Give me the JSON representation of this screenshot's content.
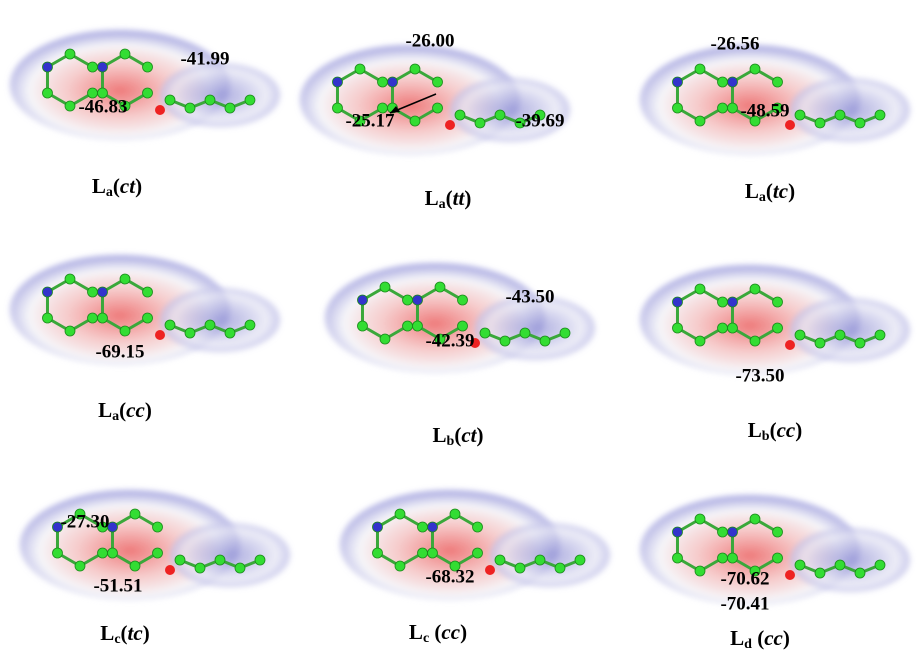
{
  "panels": [
    {
      "label": [
        "L",
        "a",
        "(",
        "ct",
        ")"
      ],
      "annotations": [
        "-41.99",
        "-46.83"
      ]
    },
    {
      "label": [
        "L",
        "a",
        "(",
        "tt",
        ")"
      ],
      "annotations": [
        "-26.00",
        "-25.17",
        "-39.69"
      ]
    },
    {
      "label": [
        "L",
        "a",
        "(",
        "tc",
        ")"
      ],
      "annotations": [
        "-26.56",
        "-48.59"
      ]
    },
    {
      "label": [
        "L",
        "a",
        "(",
        "cc",
        ")"
      ],
      "annotations": [
        "-69.15"
      ]
    },
    {
      "label": [
        "L",
        "b",
        "(",
        "ct",
        ")"
      ],
      "annotations": [
        "-43.50",
        "-42.39"
      ]
    },
    {
      "label": [
        "L",
        "b",
        "(",
        "cc",
        ")"
      ],
      "annotations": [
        "-73.50"
      ]
    },
    {
      "label": [
        "L",
        "c",
        "(",
        "tc",
        ")"
      ],
      "annotations": [
        "-27.30",
        "-51.51"
      ]
    },
    {
      "label": [
        "L",
        "c",
        " (",
        "cc",
        ")"
      ],
      "annotations": [
        "-68.32"
      ]
    },
    {
      "label": [
        "L",
        "d",
        " (",
        "cc",
        ")"
      ],
      "annotations": [
        "-70.62",
        "-70.41"
      ]
    }
  ]
}
